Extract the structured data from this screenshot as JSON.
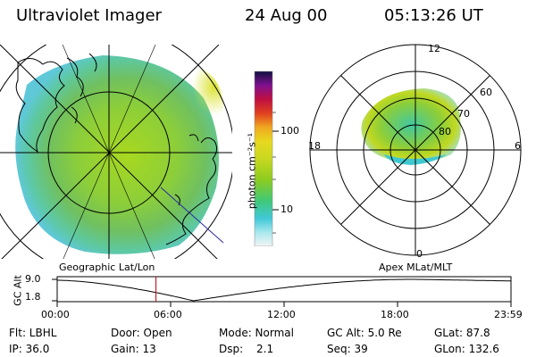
{
  "header": {
    "instrument": "Ultraviolet Imager",
    "date": "24 Aug 00",
    "time": "05:13:26 UT"
  },
  "colorbar": {
    "unit_label": "photon cm⁻²s⁻¹",
    "tick_100": "100",
    "tick_10": "10"
  },
  "polar_plot": {
    "mlt_labels": [
      "12",
      "18",
      "6",
      "0"
    ],
    "lat_labels": [
      "60",
      "70",
      "80"
    ]
  },
  "timeline": {
    "left_title": "Geographic Lat/Lon",
    "right_title": "Apex MLat/MLT",
    "axis_label": "GC Alt",
    "y_ticks": [
      "9.0",
      "1.8"
    ],
    "x_ticks": [
      "00:00",
      "06:00",
      "12:00",
      "18:00",
      "23:59"
    ],
    "current_time_fraction": 0.2176,
    "curve_min_time_fraction": 0.3
  },
  "status": {
    "flt": "Flt: LBHL",
    "door": "Door: Open",
    "mode": "Mode: Normal",
    "gc_alt": "GC Alt: 5.0 Re",
    "glat": "GLat: 87.8",
    "ip": "IP: 36.0",
    "gain": "Gain: 13",
    "dsp_label": "Dsp:",
    "dsp_value": "2.1",
    "seq": "Seq: 39",
    "glon": "GLon: 132.6"
  },
  "colors": {
    "current_time_marker": "#c0202a",
    "boundary_line": "#2a2aa0"
  }
}
